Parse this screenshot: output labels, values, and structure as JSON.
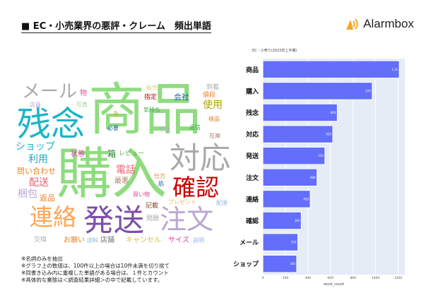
{
  "header": {
    "title": "■ EC・小売業界の悪評・クレーム　頻出単語",
    "logo_text": "Alarmbox",
    "logo_color": "#f5a623"
  },
  "word_cloud": [
    {
      "text": "商品",
      "color": "#8fdc7f",
      "size": 80
    },
    {
      "text": "購入",
      "color": "#8fdc7f",
      "size": 78
    },
    {
      "text": "残念",
      "color": "#1bb5c6",
      "size": 48
    },
    {
      "text": "メール",
      "color": "#aaaaaa",
      "size": 26
    },
    {
      "text": "対応",
      "color": "#aaaaaa",
      "size": 43
    },
    {
      "text": "確認",
      "color": "#cc0000",
      "size": 33
    },
    {
      "text": "連絡",
      "color": "#ffa556",
      "size": 33
    },
    {
      "text": "発送",
      "color": "#7e4ea8",
      "size": 43
    },
    {
      "text": "注文",
      "color": "#b9a6d4",
      "size": 38
    },
    {
      "text": "ショップ",
      "color": "#1bb5c6",
      "size": 14
    },
    {
      "text": "利用",
      "color": "#1baab9",
      "size": 14
    },
    {
      "text": "問い合わせ",
      "color": "#f08020",
      "size": 11
    },
    {
      "text": "配送",
      "color": "#f06070",
      "size": 14
    },
    {
      "text": "梱包",
      "color": "#b9a6d4",
      "size": 14
    },
    {
      "text": "返品",
      "color": "#f08020",
      "size": 11
    },
    {
      "text": "物",
      "color": "#e05090",
      "size": 10
    },
    {
      "text": "店員",
      "color": "#b9a6d4",
      "size": 8
    },
    {
      "text": "写真",
      "color": "#a0d890",
      "size": 8
    },
    {
      "text": "状態",
      "color": "#e040a0",
      "size": 10
    },
    {
      "text": "箱",
      "color": "#208020",
      "size": 12
    },
    {
      "text": "レビュー",
      "color": "#60b050",
      "size": 9
    },
    {
      "text": "電話",
      "color": "#f06070",
      "size": 14
    },
    {
      "text": "最悪",
      "color": "#b08070",
      "size": 10
    },
    {
      "text": "仕方",
      "color": "#f08020",
      "size": 8
    },
    {
      "text": "肌",
      "color": "#2060b0",
      "size": 8
    },
    {
      "text": "買い物",
      "color": "#e040a0",
      "size": 8
    },
    {
      "text": "プレゼント",
      "color": "#ffb060",
      "size": 8
    },
    {
      "text": "記載",
      "color": "#8a4a30",
      "size": 9
    },
    {
      "text": "配達",
      "color": "#90b8e0",
      "size": 8
    },
    {
      "text": "問題",
      "color": "#aaaaaa",
      "size": 9
    },
    {
      "text": "交換",
      "color": "#aaaaaa",
      "size": 9
    },
    {
      "text": "お願い",
      "color": "#f08020",
      "size": 10
    },
    {
      "text": "送料",
      "color": "#7ab8e0",
      "size": 8
    },
    {
      "text": "店舗",
      "color": "#777777",
      "size": 10
    },
    {
      "text": "キャンセル",
      "color": "#d8c040",
      "size": 10
    },
    {
      "text": "サイズ",
      "color": "#e040a0",
      "size": 10
    },
    {
      "text": "説明",
      "color": "#90b8e0",
      "size": 8
    },
    {
      "text": "販売",
      "color": "#d8d080",
      "size": 8
    },
    {
      "text": "指定",
      "color": "#cc0000",
      "size": 9
    },
    {
      "text": "会社",
      "color": "#2060b0",
      "size": 11
    },
    {
      "text": "値段",
      "color": "#f08020",
      "size": 9
    },
    {
      "text": "到着",
      "color": "#aaaaaa",
      "size": 9
    },
    {
      "text": "使用",
      "color": "#b0a000",
      "size": 14
    },
    {
      "text": "気持ち",
      "color": "#40a050",
      "size": 8
    },
    {
      "text": "為",
      "color": "#c0b000",
      "size": 8
    },
    {
      "text": "検品",
      "color": "#f08020",
      "size": 8
    },
    {
      "text": "必要",
      "color": "#2060b0",
      "size": 8
    },
    {
      "text": "非常",
      "color": "#b9a6d4",
      "size": 8
    },
    {
      "text": "返信",
      "color": "#40a050",
      "size": 8
    },
    {
      "text": "在庫",
      "color": "#b08070",
      "size": 8
    }
  ],
  "notes": [
    "※名詞のみを抽出",
    "※グラフ上の数値は、100件以上の場合は10件未満を切り捨て",
    "※同書き込み内に重複した単語がある場合は、１件とカウント",
    "※具体的な業態は＜調査結果詳細＞の中で記載しています。"
  ],
  "chart_data": {
    "type": "bar",
    "orientation": "horizontal",
    "title": "EC・小売り(2023年上半期)",
    "xlabel": "word_count",
    "ylabel": "",
    "categories": [
      "商品",
      "購入",
      "残念",
      "対応",
      "発送",
      "注文",
      "連絡",
      "確認",
      "メール",
      "ショップ"
    ],
    "values": [
      1210,
      970,
      660,
      620,
      550,
      480,
      420,
      340,
      310,
      300
    ],
    "data_labels": [
      "1.2k",
      "970",
      "660",
      "620",
      "550",
      "480",
      "420",
      "340",
      "310",
      "300"
    ],
    "xlim": [
      0,
      1260
    ],
    "xticks": [
      0,
      200,
      400,
      600,
      800,
      1000,
      1200
    ],
    "grid": true,
    "bar_color": "#636efa",
    "plot_bg": "#e5ecf6"
  }
}
